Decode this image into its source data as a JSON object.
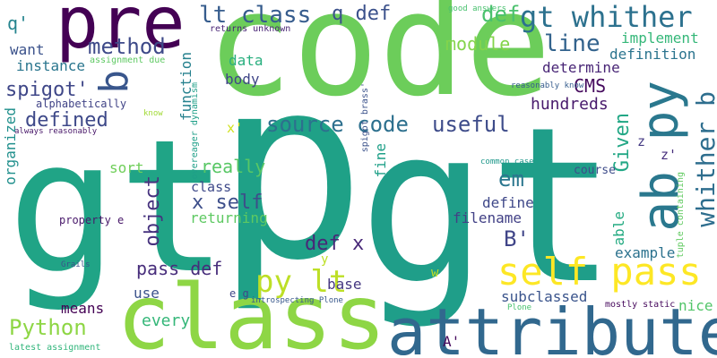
{
  "words": [
    {
      "text": "gt",
      "color": "#20a486"
    },
    {
      "text": "p",
      "color": "#1fa187"
    },
    {
      "text": "gt",
      "color": "#1f9e89"
    },
    {
      "text": "code",
      "color": "#6ccd5a"
    },
    {
      "text": "class",
      "color": "#8ed645"
    },
    {
      "text": "attribute",
      "color": "#31688e"
    },
    {
      "text": "pre",
      "color": "#440154"
    },
    {
      "text": "ab py",
      "color": "#2a788e"
    },
    {
      "text": "self pass",
      "color": "#fde725"
    },
    {
      "text": "gt whither",
      "color": "#2c718e"
    },
    {
      "text": "whither b",
      "color": "#2e6e8e"
    },
    {
      "text": "lt class",
      "color": "#365c8d"
    },
    {
      "text": "q def",
      "color": "#3b518b"
    },
    {
      "text": "def",
      "color": "#4ac16d"
    },
    {
      "text": "line",
      "color": "#33638d"
    },
    {
      "text": "method",
      "color": "#3e4a89"
    },
    {
      "text": "b",
      "color": "#39568c"
    },
    {
      "text": "source code",
      "color": "#2d708e"
    },
    {
      "text": "useful",
      "color": "#3e4c8a"
    },
    {
      "text": "spigot'",
      "color": "#3f4788"
    },
    {
      "text": "defined",
      "color": "#3e4989"
    },
    {
      "text": "really",
      "color": "#58c765"
    },
    {
      "text": "object",
      "color": "#46327e"
    },
    {
      "text": "x self",
      "color": "#3d4e8a"
    },
    {
      "text": "def x",
      "color": "#482878"
    },
    {
      "text": "py lt",
      "color": "#bddf26"
    },
    {
      "text": "pass def",
      "color": "#472d7b"
    },
    {
      "text": "Python",
      "color": "#8ed645"
    },
    {
      "text": "every",
      "color": "#35b779"
    },
    {
      "text": "em",
      "color": "#2a768e"
    },
    {
      "text": "B'",
      "color": "#404588"
    },
    {
      "text": "Given",
      "color": "#22a785"
    },
    {
      "text": "CMS",
      "color": "#460b5e"
    },
    {
      "text": "hundreds",
      "color": "#481a6c"
    },
    {
      "text": "determine",
      "color": "#482576"
    },
    {
      "text": "implement",
      "color": "#35b779"
    },
    {
      "text": "definition",
      "color": "#2b748e"
    },
    {
      "text": "module",
      "color": "#84d44b"
    },
    {
      "text": "function",
      "color": "#26818e"
    },
    {
      "text": "data",
      "color": "#29af7f"
    },
    {
      "text": "body",
      "color": "#404688"
    },
    {
      "text": "q'",
      "color": "#25848e"
    },
    {
      "text": "want",
      "color": "#3b528b"
    },
    {
      "text": "instance",
      "color": "#2a768e"
    },
    {
      "text": "organized",
      "color": "#21908d"
    },
    {
      "text": "sort",
      "color": "#6ece58"
    },
    {
      "text": "class",
      "color": "#3e4989"
    },
    {
      "text": "returning",
      "color": "#5ec962"
    },
    {
      "text": "base",
      "color": "#453781"
    },
    {
      "text": "use",
      "color": "#3b528b"
    },
    {
      "text": "means",
      "color": "#440154"
    },
    {
      "text": "subclassed",
      "color": "#3a548c"
    },
    {
      "text": "filename",
      "color": "#424186"
    },
    {
      "text": "define",
      "color": "#3f4889"
    },
    {
      "text": "fine",
      "color": "#1fa088"
    },
    {
      "text": "able",
      "color": "#25ab82"
    },
    {
      "text": "example",
      "color": "#2c728e"
    },
    {
      "text": "nice",
      "color": "#52c569"
    },
    {
      "text": "course",
      "color": "#3e4c8a"
    },
    {
      "text": "z",
      "color": "#443a83"
    },
    {
      "text": "z'",
      "color": "#472e7c"
    },
    {
      "text": "x'",
      "color": "#d0e11c"
    },
    {
      "text": "y",
      "color": "#bddf26"
    },
    {
      "text": "w",
      "color": "#c2df23"
    },
    {
      "text": "A'",
      "color": "#460a5d"
    },
    {
      "text": "e g",
      "color": "#3f4788"
    },
    {
      "text": "property e",
      "color": "#48186a"
    },
    {
      "text": "alphabetically",
      "color": "#414487"
    },
    {
      "text": "assignment due",
      "color": "#5ec962"
    },
    {
      "text": "overeager dynamism",
      "color": "#1f9f88"
    },
    {
      "text": "returns unknown",
      "color": "#482475"
    },
    {
      "text": "good answers",
      "color": "#48c16e"
    },
    {
      "text": "spigot brass'",
      "color": "#3b528b"
    },
    {
      "text": "always reasonably",
      "color": "#481769"
    },
    {
      "text": "reasonably know",
      "color": "#365d8d"
    },
    {
      "text": "know",
      "color": "#a2da37"
    },
    {
      "text": "common case",
      "color": "#1f988b"
    },
    {
      "text": "tuple containing",
      "color": "#60ca60"
    },
    {
      "text": "Grails",
      "color": "#3a538b"
    },
    {
      "text": "introspecting Plone",
      "color": "#38588c"
    },
    {
      "text": "Plone",
      "color": "#48c16e"
    },
    {
      "text": "mostly static",
      "color": "#46085c"
    },
    {
      "text": "latest assignment",
      "color": "#31b57b"
    }
  ]
}
